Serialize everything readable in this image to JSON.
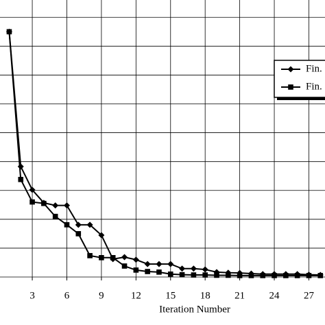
{
  "chart_data": {
    "type": "line",
    "x_label": "Iteration Number",
    "x": [
      1,
      2,
      3,
      4,
      5,
      6,
      7,
      8,
      9,
      10,
      11,
      12,
      13,
      14,
      15,
      16,
      17,
      18,
      19,
      20,
      21,
      22,
      23,
      24,
      25,
      26,
      27,
      28
    ],
    "series": [
      {
        "name": "Fin.",
        "marker": "diamond",
        "color": "#000000",
        "values": [
          8.5,
          3.83,
          3.02,
          2.57,
          2.48,
          2.48,
          1.81,
          1.81,
          1.45,
          0.62,
          0.69,
          0.6,
          0.45,
          0.45,
          0.45,
          0.29,
          0.29,
          0.26,
          0.17,
          0.15,
          0.14,
          0.12,
          0.1,
          0.1,
          0.1,
          0.1,
          0.08,
          0.07
        ]
      },
      {
        "name": "Fin.",
        "marker": "square",
        "color": "#000000",
        "values": [
          8.5,
          3.38,
          2.6,
          2.55,
          2.1,
          1.81,
          1.5,
          0.74,
          0.67,
          0.67,
          0.38,
          0.24,
          0.19,
          0.17,
          0.1,
          0.08,
          0.07,
          0.07,
          0.06,
          0.06,
          0.05,
          0.05,
          0.05,
          0.05,
          0.05,
          0.05,
          0.05,
          0.05
        ]
      }
    ],
    "xlim": [
      0.2,
      28.4
    ],
    "xticks": [
      3,
      6,
      9,
      12,
      15,
      18,
      21,
      24,
      27
    ],
    "ylim": [
      0,
      9.6
    ],
    "yticks": [
      0,
      1,
      2,
      3,
      4,
      5,
      6,
      7,
      8,
      9
    ],
    "grid": true,
    "legend": "upper right"
  }
}
